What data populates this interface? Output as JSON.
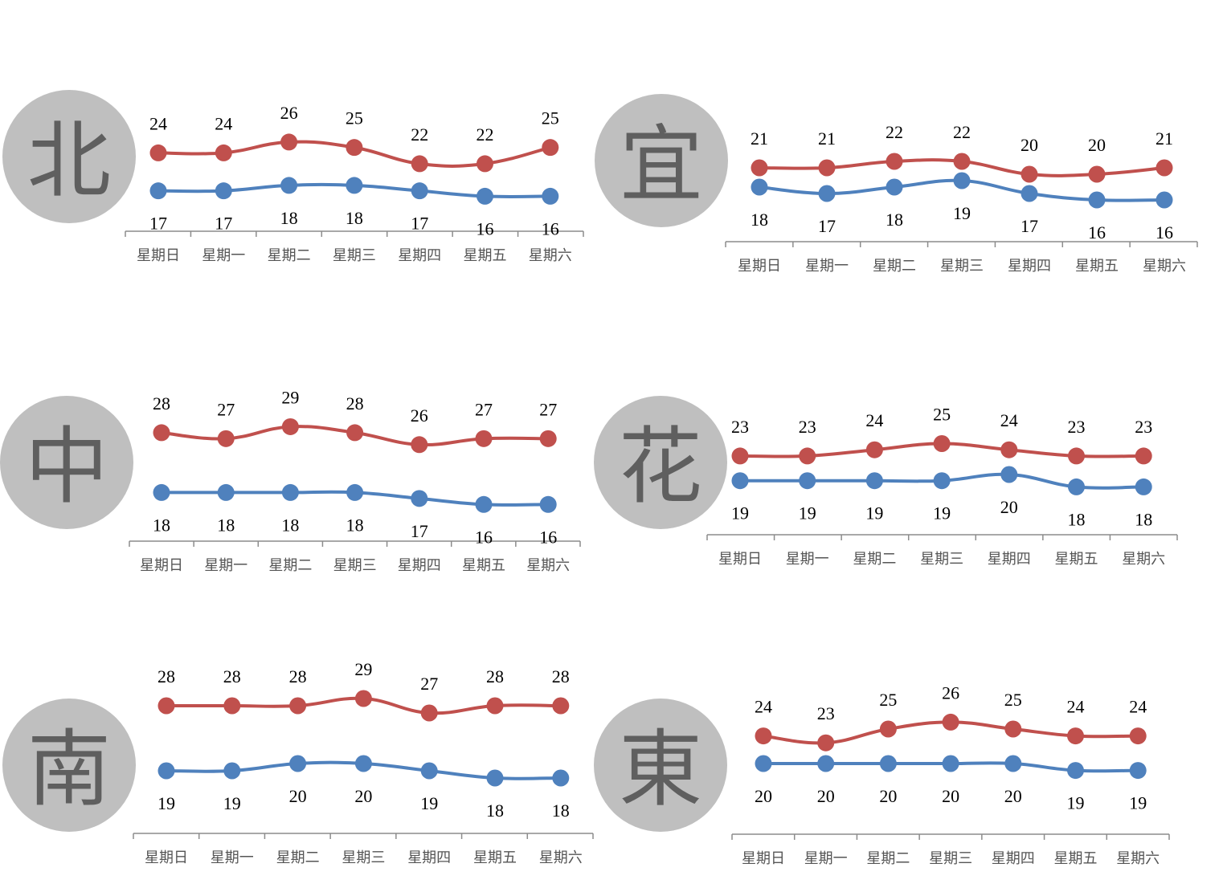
{
  "colors": {
    "high": "#c0504d",
    "low": "#4f81bd",
    "circle": "#bfbfbf",
    "axis": "#8c8c8c"
  },
  "chart_data": [
    {
      "type": "line",
      "region": "北",
      "categories": [
        "星期日",
        "星期一",
        "星期二",
        "星期三",
        "星期四",
        "星期五",
        "星期六"
      ],
      "series": [
        {
          "values": [
            24,
            24,
            26,
            25,
            22,
            22,
            25
          ]
        },
        {
          "values": [
            17,
            17,
            18,
            18,
            17,
            16,
            16
          ]
        }
      ]
    },
    {
      "type": "line",
      "region": "宜",
      "categories": [
        "星期日",
        "星期一",
        "星期二",
        "星期三",
        "星期四",
        "星期五",
        "星期六"
      ],
      "series": [
        {
          "values": [
            21,
            21,
            22,
            22,
            20,
            20,
            21
          ]
        },
        {
          "values": [
            18,
            17,
            18,
            19,
            17,
            16,
            16
          ]
        }
      ]
    },
    {
      "type": "line",
      "region": "中",
      "categories": [
        "星期日",
        "星期一",
        "星期二",
        "星期三",
        "星期四",
        "星期五",
        "星期六"
      ],
      "series": [
        {
          "values": [
            28,
            27,
            29,
            28,
            26,
            27,
            27
          ]
        },
        {
          "values": [
            18,
            18,
            18,
            18,
            17,
            16,
            16
          ]
        }
      ]
    },
    {
      "type": "line",
      "region": "花",
      "categories": [
        "星期日",
        "星期一",
        "星期二",
        "星期三",
        "星期四",
        "星期五",
        "星期六"
      ],
      "series": [
        {
          "values": [
            23,
            23,
            24,
            25,
            24,
            23,
            23
          ]
        },
        {
          "values": [
            19,
            19,
            19,
            19,
            20,
            18,
            18
          ]
        }
      ]
    },
    {
      "type": "line",
      "region": "南",
      "categories": [
        "星期日",
        "星期一",
        "星期二",
        "星期三",
        "星期四",
        "星期五",
        "星期六"
      ],
      "series": [
        {
          "values": [
            28,
            28,
            28,
            29,
            27,
            28,
            28
          ]
        },
        {
          "values": [
            19,
            19,
            20,
            20,
            19,
            18,
            18
          ]
        }
      ]
    },
    {
      "type": "line",
      "region": "東",
      "categories": [
        "星期日",
        "星期一",
        "星期二",
        "星期三",
        "星期四",
        "星期五",
        "星期六"
      ],
      "series": [
        {
          "values": [
            24,
            23,
            25,
            26,
            25,
            24,
            24
          ]
        },
        {
          "values": [
            20,
            20,
            20,
            20,
            20,
            19,
            19
          ]
        }
      ]
    }
  ]
}
